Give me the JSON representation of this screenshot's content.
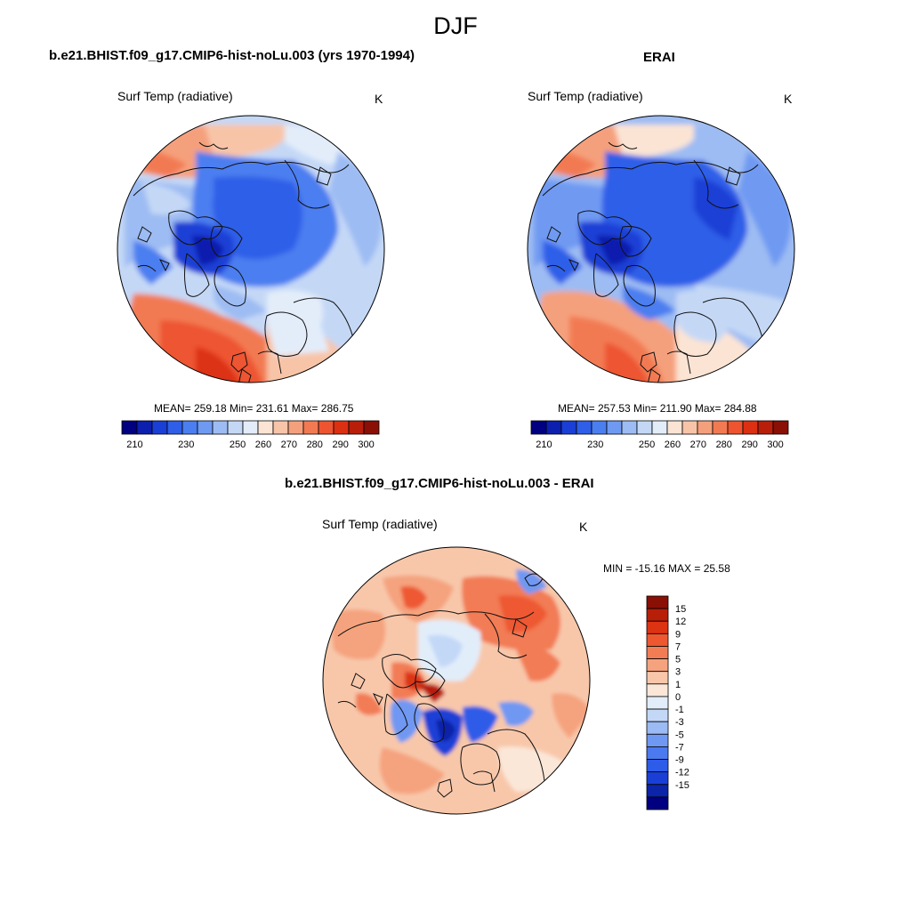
{
  "figure": {
    "season": "DJF"
  },
  "colors": {
    "abs_scale": [
      "#000080",
      "#0c1fae",
      "#1a3fd6",
      "#2f5fe8",
      "#4b7ef0",
      "#6f9af2",
      "#9dbcf3",
      "#c4d8f6",
      "#e3edfa",
      "#fbe4d4",
      "#f8c4a8",
      "#f5a07c",
      "#f27a52",
      "#ee5430",
      "#dc3012",
      "#b81e0a",
      "#8a0f05"
    ],
    "diff_scale": [
      "#000080",
      "#0b24a8",
      "#1a3fd6",
      "#2d5ce8",
      "#4b7af0",
      "#6f98f2",
      "#9cbaf3",
      "#c3d8f7",
      "#e2edfa",
      "#fbe7d8",
      "#f8c7aa",
      "#f5a37e",
      "#f27c54",
      "#ee5830",
      "#dc3412",
      "#b81f08",
      "#8a0f05"
    ],
    "coastline": "#111111"
  },
  "chart_data": [
    {
      "type": "heatmap",
      "projection": "north-polar-stereographic",
      "title": "b.e21.BHIST.f09_g17.CMIP6-hist-noLu.003 (yrs 1970-1994)",
      "variable": "Surf Temp (radiative)",
      "units": "K",
      "stats_text": "MEAN= 259.18  Min= 231.61  Max= 286.75",
      "stats": {
        "mean": 259.18,
        "min": 231.61,
        "max": 286.75
      },
      "colorbar": {
        "orientation": "horizontal",
        "range": [
          205,
          305
        ],
        "levels": [
          210,
          220,
          230,
          240,
          250,
          255,
          260,
          265,
          270,
          275,
          280,
          285,
          290,
          295,
          300
        ],
        "tick_labels": [
          "210",
          "230",
          "250",
          "260",
          "270",
          "280",
          "290",
          "300"
        ]
      }
    },
    {
      "type": "heatmap",
      "projection": "north-polar-stereographic",
      "title": "ERAI",
      "variable": "Surf Temp (radiative)",
      "units": "K",
      "stats_text": "MEAN= 257.53  Min= 211.90  Max= 284.88",
      "stats": {
        "mean": 257.53,
        "min": 211.9,
        "max": 284.88
      },
      "colorbar": {
        "orientation": "horizontal",
        "range": [
          205,
          305
        ],
        "levels": [
          210,
          220,
          230,
          240,
          250,
          255,
          260,
          265,
          270,
          275,
          280,
          285,
          290,
          295,
          300
        ],
        "tick_labels": [
          "210",
          "230",
          "250",
          "260",
          "270",
          "280",
          "290",
          "300"
        ]
      }
    },
    {
      "type": "heatmap",
      "projection": "north-polar-stereographic",
      "title": "b.e21.BHIST.f09_g17.CMIP6-hist-noLu.003 - ERAI",
      "variable": "Surf Temp (radiative)",
      "units": "K",
      "stats_text": "MIN = -15.16 MAX =  25.58",
      "stats": {
        "min": -15.16,
        "max": 25.58
      },
      "colorbar": {
        "orientation": "vertical",
        "tick_labels": [
          "15",
          "12",
          "9",
          "7",
          "5",
          "3",
          "1",
          "0",
          "-1",
          "-3",
          "-5",
          "-7",
          "-9",
          "-12",
          "-15"
        ]
      }
    }
  ]
}
